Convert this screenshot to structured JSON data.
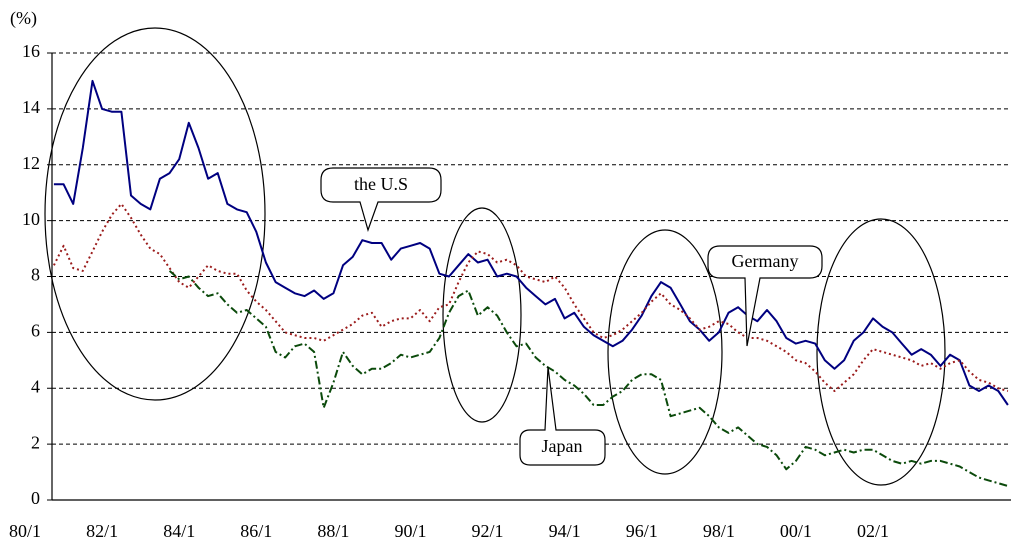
{
  "chart_data": {
    "type": "line",
    "ylabel": "(%)",
    "x": [
      1980.75,
      1981,
      1981.25,
      1981.5,
      1981.75,
      1982,
      1982.25,
      1982.5,
      1982.75,
      1983,
      1983.25,
      1983.5,
      1983.75,
      1984,
      1984.25,
      1984.5,
      1984.75,
      1985,
      1985.25,
      1985.5,
      1985.75,
      1986,
      1986.25,
      1986.5,
      1986.75,
      1987,
      1987.25,
      1987.5,
      1987.75,
      1988,
      1988.25,
      1988.5,
      1988.75,
      1989,
      1989.25,
      1989.5,
      1989.75,
      1990,
      1990.25,
      1990.5,
      1990.75,
      1991,
      1991.25,
      1991.5,
      1991.75,
      1992,
      1992.25,
      1992.5,
      1992.75,
      1993,
      1993.25,
      1993.5,
      1993.75,
      1994,
      1994.25,
      1994.5,
      1994.75,
      1995,
      1995.25,
      1995.5,
      1995.75,
      1996,
      1996.25,
      1996.5,
      1996.75,
      1997,
      1997.25,
      1997.5,
      1997.75,
      1998,
      1998.25,
      1998.5,
      1998.75,
      1999,
      1999.25,
      1999.5,
      1999.75,
      2000,
      2000.25,
      2000.5,
      2000.75,
      2001,
      2001.25,
      2001.5,
      2001.75,
      2002,
      2002.25,
      2002.5,
      2002.75,
      2003,
      2003.25,
      2003.5,
      2003.75,
      2004,
      2004.25,
      2004.5,
      2004.75,
      2005,
      2005.25,
      2005.5
    ],
    "series": [
      {
        "name": "the U.S",
        "color": "#000080",
        "dash": "solid",
        "values": [
          11.3,
          11.3,
          10.6,
          12.6,
          15.0,
          14.0,
          13.9,
          13.9,
          10.9,
          10.6,
          10.4,
          11.5,
          11.7,
          12.2,
          13.5,
          12.6,
          11.5,
          11.7,
          10.6,
          10.4,
          10.3,
          9.6,
          8.5,
          7.8,
          7.6,
          7.4,
          7.3,
          7.5,
          7.2,
          7.4,
          8.4,
          8.7,
          9.3,
          9.2,
          9.2,
          8.6,
          9.0,
          9.1,
          9.2,
          9.0,
          8.1,
          8.0,
          8.4,
          8.8,
          8.5,
          8.6,
          8.0,
          8.1,
          8.0,
          7.6,
          7.3,
          7.0,
          7.2,
          6.5,
          6.7,
          6.2,
          5.9,
          5.7,
          5.5,
          5.7,
          6.1,
          6.6,
          7.3,
          7.8,
          7.6,
          7.0,
          6.4,
          6.1,
          5.7,
          6.0,
          6.7,
          6.9,
          6.6,
          6.4,
          6.8,
          6.4,
          5.8,
          5.6,
          5.7,
          5.6,
          5.0,
          4.7,
          5.0,
          5.7,
          6.0,
          6.5,
          6.2,
          6.0,
          5.6,
          5.2,
          5.4,
          5.2,
          4.8,
          5.2,
          5.0,
          4.1,
          3.9,
          4.1,
          3.9,
          3.4
        ]
      },
      {
        "name": "Germany",
        "color": "#9b1c1c",
        "dash": "dotted",
        "values": [
          8.4,
          9.1,
          8.3,
          8.2,
          8.9,
          9.6,
          10.2,
          10.6,
          10.1,
          9.5,
          9.0,
          8.8,
          8.3,
          7.8,
          7.6,
          8.0,
          8.4,
          8.2,
          8.1,
          8.1,
          7.5,
          7.1,
          6.8,
          6.4,
          6.0,
          5.9,
          5.8,
          5.8,
          5.7,
          5.9,
          6.1,
          6.3,
          6.6,
          6.7,
          6.2,
          6.4,
          6.5,
          6.5,
          6.8,
          6.4,
          6.9,
          7.0,
          7.8,
          8.5,
          8.9,
          8.8,
          8.5,
          8.6,
          8.4,
          8.0,
          7.9,
          7.8,
          8.0,
          7.6,
          7.0,
          6.5,
          6.0,
          5.8,
          5.9,
          6.1,
          6.4,
          6.7,
          7.1,
          7.4,
          7.0,
          6.8,
          6.5,
          6.1,
          6.2,
          6.4,
          6.3,
          6.0,
          5.8,
          5.8,
          5.7,
          5.5,
          5.3,
          5.0,
          4.9,
          4.6,
          4.2,
          3.9,
          4.2,
          4.5,
          5.0,
          5.4,
          5.3,
          5.2,
          5.1,
          5.0,
          4.8,
          4.9,
          4.7,
          4.9,
          5.0,
          4.6,
          4.3,
          4.2,
          4.0,
          3.9
        ]
      },
      {
        "name": "Japan",
        "color": "#0b4a0b",
        "dash": "dashdot",
        "values": [
          null,
          null,
          null,
          null,
          null,
          null,
          null,
          null,
          null,
          null,
          null,
          null,
          8.2,
          7.9,
          8.0,
          7.6,
          7.3,
          7.4,
          7.0,
          6.7,
          6.8,
          6.5,
          6.2,
          5.3,
          5.1,
          5.5,
          5.6,
          5.3,
          3.3,
          4.2,
          5.3,
          4.8,
          4.5,
          4.7,
          4.7,
          4.9,
          5.2,
          5.1,
          5.2,
          5.3,
          5.8,
          6.7,
          7.3,
          7.5,
          6.6,
          6.9,
          6.6,
          6.0,
          5.5,
          5.6,
          5.1,
          4.8,
          4.6,
          4.3,
          4.1,
          3.8,
          3.4,
          3.4,
          3.7,
          3.9,
          4.3,
          4.5,
          4.5,
          4.3,
          3.0,
          3.1,
          3.2,
          3.3,
          3.0,
          2.6,
          2.4,
          2.6,
          2.3,
          2.0,
          1.9,
          1.6,
          1.1,
          1.4,
          1.9,
          1.8,
          1.6,
          1.7,
          1.8,
          1.7,
          1.8,
          1.8,
          1.6,
          1.4,
          1.3,
          1.4,
          1.3,
          1.4,
          1.4,
          1.3,
          1.2,
          1.0,
          0.8,
          0.7,
          0.6,
          0.5
        ]
      }
    ],
    "xlim": [
      1980.7,
      2005.58
    ],
    "xticks": [
      {
        "value": 1980,
        "label": "80/1"
      },
      {
        "value": 1982,
        "label": "82/1"
      },
      {
        "value": 1984,
        "label": "84/1"
      },
      {
        "value": 1986,
        "label": "86/1"
      },
      {
        "value": 1988,
        "label": "88/1"
      },
      {
        "value": 1990,
        "label": "90/1"
      },
      {
        "value": 1992,
        "label": "92/1"
      },
      {
        "value": 1994,
        "label": "94/1"
      },
      {
        "value": 1996,
        "label": "96/1"
      },
      {
        "value": 1998,
        "label": "98/1"
      },
      {
        "value": 2000,
        "label": "00/1"
      },
      {
        "value": 2002,
        "label": "02/1"
      }
    ],
    "ylim": [
      0,
      16
    ],
    "yticks": [
      0,
      2,
      4,
      6,
      8,
      10,
      12,
      14,
      16
    ],
    "grid": true,
    "annotations": [
      "the U.S",
      "Japan",
      "Germany"
    ]
  }
}
